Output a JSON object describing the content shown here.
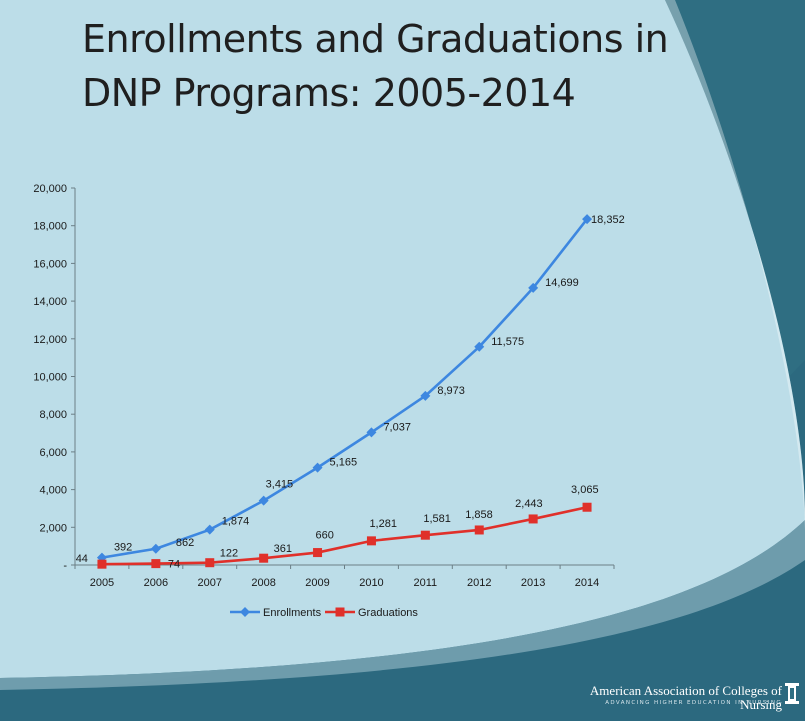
{
  "slide": {
    "title_line1": "Enrollments and Graduations in",
    "title_line2": "DNP Programs: 2005-2014",
    "footer_org": "American Association of Colleges of Nursing",
    "footer_tagline": "ADVANCING HIGHER EDUCATION IN NURSING",
    "colors": {
      "background_light": "#bcdde8",
      "background_dark": "#2f6e82",
      "enrollments": "#3d87e0",
      "graduations": "#e0302a"
    }
  },
  "chart_data": {
    "type": "line",
    "title": "",
    "xlabel": "",
    "ylabel": "",
    "categories": [
      "2005",
      "2006",
      "2007",
      "2008",
      "2009",
      "2010",
      "2011",
      "2012",
      "2013",
      "2014"
    ],
    "ylim": [
      0,
      20000
    ],
    "yticks": [
      0,
      2000,
      4000,
      6000,
      8000,
      10000,
      12000,
      14000,
      16000,
      18000,
      20000
    ],
    "ytick_labels": [
      "-",
      "2,000",
      "4,000",
      "6,000",
      "8,000",
      "10,000",
      "12,000",
      "14,000",
      "16,000",
      "18,000",
      "20,000"
    ],
    "grid": false,
    "legend": "bottom",
    "series": [
      {
        "name": "Enrollments",
        "marker": "diamond",
        "color": "#3d87e0",
        "values": [
          392,
          862,
          1874,
          3415,
          5165,
          7037,
          8973,
          11575,
          14699,
          18352
        ],
        "labels": [
          "392",
          "862",
          "1,874",
          "3,415",
          "5,165",
          "7,037",
          "8,973",
          "11,575",
          "14,699",
          "18,352"
        ]
      },
      {
        "name": "Graduations",
        "marker": "square",
        "color": "#e0302a",
        "values": [
          44,
          74,
          122,
          361,
          660,
          1281,
          1581,
          1858,
          2443,
          3065
        ],
        "labels": [
          "44",
          "74",
          "122",
          "361",
          "660",
          "1,281",
          "1,581",
          "1,858",
          "2,443",
          "3,065"
        ]
      }
    ]
  }
}
